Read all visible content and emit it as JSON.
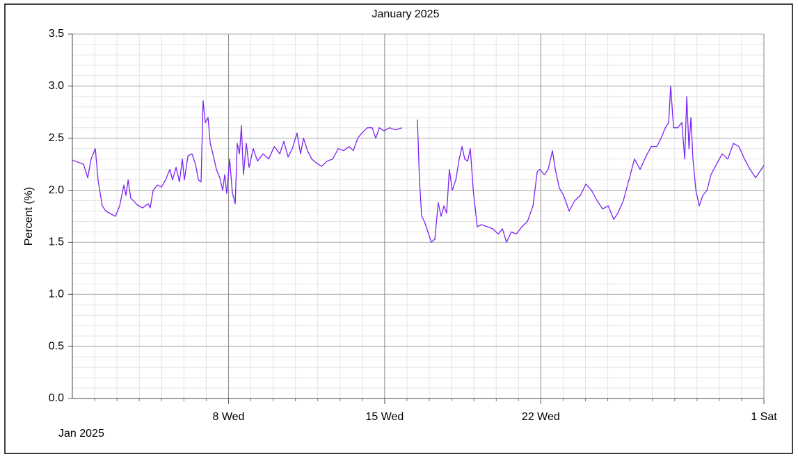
{
  "chart_data": {
    "type": "line",
    "title": "January 2025",
    "ylabel": "Percent (%)",
    "x_period_label": "Jan 2025",
    "xlim": [
      0,
      31
    ],
    "xticks": [
      {
        "value": 7,
        "label": "8 Wed"
      },
      {
        "value": 14,
        "label": "15 Wed"
      },
      {
        "value": 21,
        "label": "22 Wed"
      },
      {
        "value": 31,
        "label": "1 Sat"
      }
    ],
    "xminor": [
      1,
      2,
      3,
      4,
      5,
      6,
      8,
      9,
      10,
      11,
      12,
      13,
      15,
      16,
      17,
      18,
      19,
      20,
      22,
      23,
      24,
      25,
      26,
      27,
      28,
      29,
      30
    ],
    "ylim": [
      0,
      3.5
    ],
    "yticks": [
      {
        "value": 0,
        "label": "0.0"
      },
      0.5,
      {
        "value": 1,
        "label": "1.0"
      },
      1.5,
      {
        "value": 2,
        "label": "2.0"
      },
      2.5,
      {
        "value": 3,
        "label": "3.0"
      },
      3.5
    ],
    "yminor": [
      0.1,
      0.2,
      0.3,
      0.4,
      0.6,
      0.7,
      0.8,
      0.9,
      1.1,
      1.2,
      1.3,
      1.4,
      1.6,
      1.7,
      1.8,
      1.9,
      2.1,
      2.2,
      2.3,
      2.4,
      2.6,
      2.7,
      2.8,
      2.9,
      3.1,
      3.2,
      3.3,
      3.4
    ],
    "grid": true,
    "x": [
      0,
      0.5,
      0.69,
      0.84,
      1.03,
      1.15,
      1.34,
      1.5,
      1.75,
      1.93,
      2.12,
      2.31,
      2.4,
      2.5,
      2.62,
      2.74,
      2.9,
      3.15,
      3.4,
      3.49,
      3.62,
      3.81,
      3.99,
      4.18,
      4.37,
      4.49,
      4.65,
      4.8,
      4.93,
      5.02,
      5.18,
      5.36,
      5.52,
      5.65,
      5.77,
      5.86,
      5.96,
      6.08,
      6.18,
      6.3,
      6.46,
      6.61,
      6.74,
      6.83,
      6.92,
      7.05,
      7.17,
      7.3,
      7.39,
      7.49,
      7.58,
      7.67,
      7.8,
      7.92,
      8.11,
      8.3,
      8.55,
      8.8,
      9.05,
      9.3,
      9.48,
      9.67,
      9.86,
      10.07,
      10.23,
      10.36,
      10.54,
      10.73,
      10.95,
      11.17,
      11.42,
      11.67,
      11.92,
      12.16,
      12.41,
      12.6,
      12.79,
      12.98,
      13.23,
      13.44,
      13.6,
      13.76,
      13.97,
      14.22,
      14.47,
      14.78,
      15.1,
      15.47,
      15.56,
      15.66,
      15.78,
      15.94,
      16.09,
      16.25,
      16.4,
      16.53,
      16.66,
      16.78,
      16.9,
      17.03,
      17.19,
      17.34,
      17.47,
      17.59,
      17.72,
      17.84,
      17.97,
      18.15,
      18.34,
      18.59,
      18.84,
      19.09,
      19.28,
      19.46,
      19.68,
      19.9,
      20.15,
      20.4,
      20.65,
      20.84,
      20.96,
      21.15,
      21.33,
      21.52,
      21.65,
      21.83,
      22.02,
      22.27,
      22.52,
      22.77,
      23.02,
      23.27,
      23.52,
      23.77,
      24.02,
      24.27,
      24.45,
      24.7,
      24.95,
      25.2,
      25.45,
      25.7,
      25.95,
      26.2,
      26.39,
      26.58,
      26.73,
      26.82,
      26.95,
      27.14,
      27.32,
      27.45,
      27.54,
      27.64,
      27.73,
      27.82,
      27.95,
      28.1,
      28.26,
      28.45,
      28.63,
      28.88,
      29.13,
      29.38,
      29.63,
      29.88,
      30.13,
      30.38,
      30.63,
      30.82,
      31
    ],
    "series": [
      {
        "color": "#7b22f2",
        "values": [
          2.29,
          2.25,
          2.12,
          2.3,
          2.4,
          2.1,
          1.85,
          1.8,
          1.77,
          1.75,
          1.85,
          2.05,
          1.95,
          2.1,
          1.92,
          1.9,
          1.86,
          1.83,
          1.87,
          1.83,
          2.0,
          2.05,
          2.03,
          2.1,
          2.2,
          2.1,
          2.22,
          2.08,
          2.3,
          2.1,
          2.33,
          2.35,
          2.25,
          2.1,
          2.08,
          2.86,
          2.65,
          2.7,
          2.45,
          2.35,
          2.2,
          2.12,
          2.0,
          2.15,
          1.97,
          2.3,
          1.98,
          1.87,
          2.45,
          2.35,
          2.62,
          2.15,
          2.45,
          2.22,
          2.4,
          2.28,
          2.35,
          2.3,
          2.42,
          2.35,
          2.47,
          2.32,
          2.4,
          2.55,
          2.35,
          2.5,
          2.38,
          2.3,
          2.26,
          2.23,
          2.28,
          2.3,
          2.4,
          2.38,
          2.42,
          2.38,
          2.5,
          2.55,
          2.6,
          2.6,
          2.5,
          2.6,
          2.57,
          2.6,
          2.58,
          2.6,
          null,
          2.68,
          2.1,
          1.75,
          1.7,
          1.6,
          1.5,
          1.53,
          1.88,
          1.75,
          1.85,
          1.78,
          2.2,
          2.0,
          2.1,
          2.3,
          2.42,
          2.3,
          2.28,
          2.4,
          2.0,
          1.65,
          1.67,
          1.65,
          1.63,
          1.58,
          1.63,
          1.5,
          1.6,
          1.58,
          1.65,
          1.7,
          1.85,
          2.18,
          2.2,
          2.15,
          2.2,
          2.38,
          2.2,
          2.02,
          1.95,
          1.8,
          1.9,
          1.95,
          2.06,
          2.0,
          1.9,
          1.82,
          1.85,
          1.72,
          1.78,
          1.9,
          2.1,
          2.3,
          2.2,
          2.32,
          2.42,
          2.42,
          2.5,
          2.6,
          2.65,
          3.0,
          2.6,
          2.6,
          2.65,
          2.3,
          2.9,
          2.4,
          2.7,
          2.3,
          2.0,
          1.85,
          1.95,
          2.0,
          2.15,
          2.25,
          2.35,
          2.3,
          2.45,
          2.42,
          2.3,
          2.2,
          2.12,
          2.18,
          2.24
        ]
      }
    ]
  }
}
